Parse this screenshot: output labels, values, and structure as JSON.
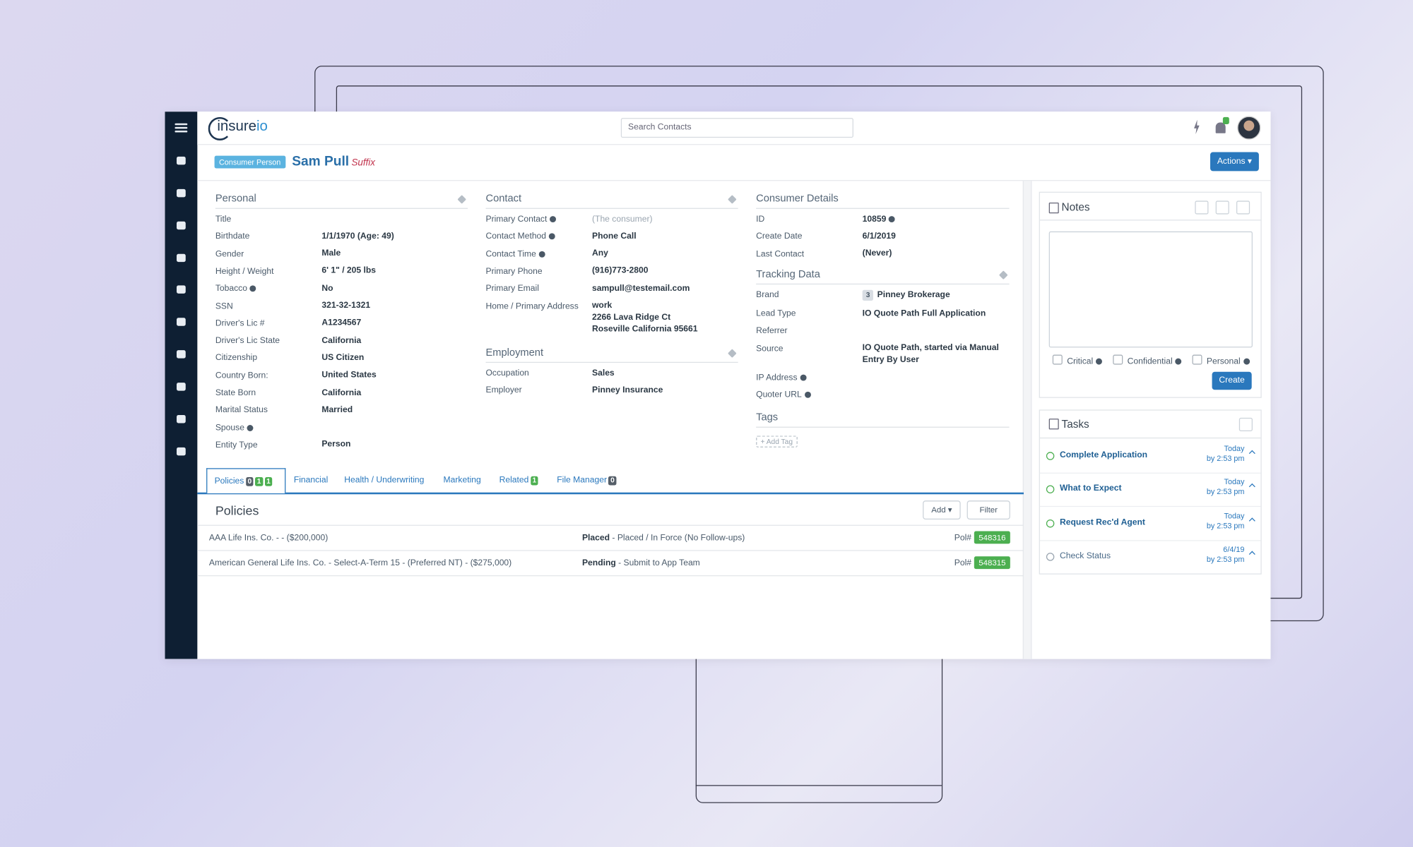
{
  "header": {
    "logo": "insure",
    "logo_accent": "io",
    "search_placeholder": "Search Contacts"
  },
  "contact": {
    "badge": "Consumer Person",
    "name": "Sam Pull",
    "suffix": "Suffix",
    "actions": "Actions"
  },
  "sections": [
    {
      "title": "Personal",
      "editable": true,
      "fields": [
        {
          "label": "Title"
        },
        {
          "label": "Birthdate",
          "value": "1/1/1970 (Age: 49)"
        },
        {
          "label": "Gender",
          "value": "Male"
        },
        {
          "label": "Height / Weight",
          "value": "6' 1\" / 205 lbs"
        },
        {
          "label": "Tobacco",
          "help": true,
          "value": "No"
        },
        {
          "label": "SSN",
          "value": "321-32-1321"
        },
        {
          "label": "Driver's Lic #",
          "value": "A1234567"
        },
        {
          "label": "Driver's Lic State",
          "value": "California"
        },
        {
          "label": "Citizenship",
          "value": "US Citizen"
        },
        {
          "label": "Country Born:",
          "value": "United States"
        },
        {
          "label": "State Born",
          "value": "California"
        },
        {
          "label": "Marital Status",
          "value": "Married"
        },
        {
          "label": "Spouse",
          "help": true
        },
        {
          "label": "Entity Type",
          "value": "Person"
        }
      ]
    },
    {
      "title": "Contact",
      "editable": true,
      "fields": [
        {
          "label": "Primary Contact",
          "help": true,
          "value": "(The consumer)",
          "muted": true
        },
        {
          "label": "Contact Method",
          "help": true,
          "value": "Phone Call"
        },
        {
          "label": "Contact Time",
          "help": true,
          "value": "Any"
        },
        {
          "label": "Primary Phone",
          "value": "(916)773-2800"
        },
        {
          "label": "Primary Email",
          "value": "sampull@testemail.com"
        },
        {
          "label": "Home / Primary Address",
          "lines": [
            "work",
            "2266 Lava Ridge Ct",
            "Roseville California 95661"
          ]
        }
      ]
    },
    {
      "title": "Employment",
      "editable": true,
      "fields": [
        {
          "label": "Occupation",
          "value": "Sales"
        },
        {
          "label": "Employer",
          "value": "Pinney Insurance"
        }
      ]
    },
    {
      "title": "Consumer Details",
      "fields": [
        {
          "label": "ID",
          "value": "10859",
          "help_value": true
        },
        {
          "label": "Create Date",
          "value": "6/1/2019"
        },
        {
          "label": "Last Contact",
          "value": "(Never)"
        }
      ]
    },
    {
      "title": "Tracking Data",
      "editable": true,
      "fields": [
        {
          "label": "Brand",
          "badge": "3",
          "value": "Pinney Brokerage"
        },
        {
          "label": "Lead Type",
          "value": "IO Quote Path Full Application"
        },
        {
          "label": "Referrer"
        },
        {
          "label": "Source",
          "lines": [
            "IO Quote Path, started via Manual",
            "Entry By User"
          ]
        },
        {
          "label": "IP Address",
          "help": true
        },
        {
          "label": "Quoter URL",
          "help": true
        }
      ]
    },
    {
      "title": "Tags",
      "action": "+ Add Tag",
      "fields": []
    }
  ],
  "tabs": [
    {
      "label": "Policies",
      "counts": [
        "0",
        "1",
        "1"
      ],
      "active": true
    },
    {
      "label": "Financial"
    },
    {
      "label": "Health / Underwriting"
    },
    {
      "label": "Marketing"
    },
    {
      "label": "Related",
      "counts": [
        "1"
      ]
    },
    {
      "label": "File Manager",
      "counts": [
        "0"
      ]
    }
  ],
  "policies": {
    "title": "Policies",
    "add": "Add",
    "filter": "Filter",
    "rows": [
      {
        "description": "AAA Life Ins. Co. - - ($200,000)",
        "status": "Placed",
        "status_detail": "- Placed / In Force (No Follow-ups)",
        "pol_label": "Pol#",
        "number": "548316"
      },
      {
        "description": "American General Life Ins. Co. - Select-A-Term 15 - (Preferred NT) - ($275,000)",
        "status": "Pending",
        "status_detail": "- Submit to App Team",
        "pol_label": "Pol#",
        "number": "548315"
      }
    ]
  },
  "notes": {
    "title": "Notes",
    "options": [
      "Critical",
      "Confidential",
      "Personal"
    ],
    "button": "Create"
  },
  "tasks": {
    "title": "Tasks",
    "items": [
      {
        "name": "Complete Application",
        "date": "Today",
        "time": "by 2:53 pm",
        "done": true
      },
      {
        "name": "What to Expect",
        "date": "Today",
        "time": "by 2:53 pm",
        "done": true
      },
      {
        "name": "Request Rec'd Agent",
        "date": "Today",
        "time": "by 2:53 pm",
        "done": true
      },
      {
        "name": "Check Status",
        "date": "6/4/19",
        "time": "by 2:53 pm",
        "done": false
      }
    ]
  }
}
